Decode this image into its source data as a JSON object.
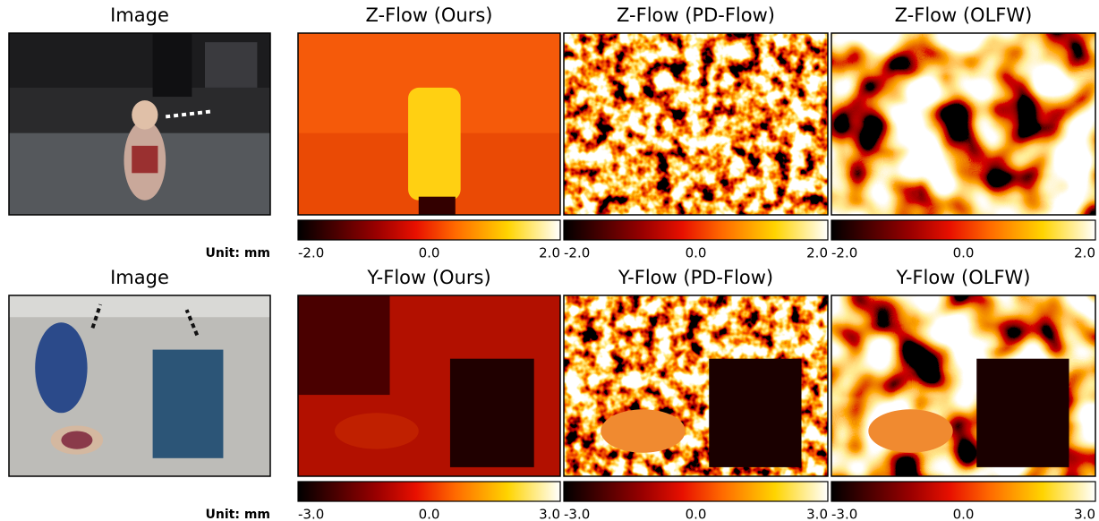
{
  "rows": [
    {
      "image_title": "Image",
      "unit_label": "Unit: mm",
      "panels": [
        {
          "title": "Z-Flow (Ours)",
          "ticks": [
            "-2.0",
            "0.0",
            "2.0"
          ]
        },
        {
          "title": "Z-Flow (PD-Flow)",
          "ticks": [
            "-2.0",
            "0.0",
            "2.0"
          ]
        },
        {
          "title": "Z-Flow (OLFW)",
          "ticks": [
            "-2.0",
            "0.0",
            "2.0"
          ]
        }
      ]
    },
    {
      "image_title": "Image",
      "unit_label": "Unit: mm",
      "panels": [
        {
          "title": "Y-Flow (Ours)",
          "ticks": [
            "-3.0",
            "0.0",
            "3.0"
          ]
        },
        {
          "title": "Y-Flow (PD-Flow)",
          "ticks": [
            "-3.0",
            "0.0",
            "3.0"
          ]
        },
        {
          "title": "Y-Flow (OLFW)",
          "ticks": [
            "-3.0",
            "0.0",
            "3.0"
          ]
        }
      ]
    }
  ]
}
